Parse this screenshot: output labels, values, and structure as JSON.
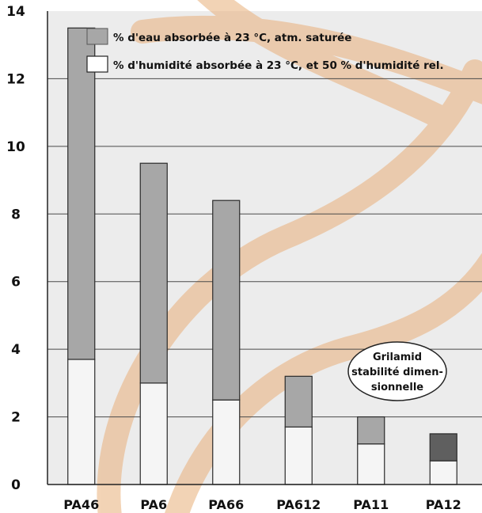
{
  "chart_data": {
    "type": "bar",
    "stacked": true,
    "categories": [
      "PA46",
      "PA6",
      "PA66",
      "PA612",
      "PA11",
      "PA12"
    ],
    "series": [
      {
        "name": "% d'humidité absorbée à 23 °C, et 50 % d'humidité rel.",
        "values": [
          3.7,
          3.0,
          2.5,
          1.7,
          1.2,
          0.7
        ],
        "color": "#f5f5f5"
      },
      {
        "name": "% d'eau absorbée à 23 °C, atm. saturée",
        "values": [
          9.8,
          6.5,
          5.9,
          1.5,
          0.8,
          0.8
        ],
        "color": "#a7a7a7",
        "highlight_color": "#5f5f5f",
        "highlight_category": "PA12"
      }
    ],
    "legend_order": [
      1,
      0
    ],
    "legend_position": "top-right",
    "ylim": [
      0,
      14
    ],
    "yticks": [
      0,
      2,
      4,
      6,
      8,
      10,
      12,
      14
    ],
    "grid": true,
    "xlabel": "",
    "ylabel": "",
    "annotation": {
      "lines": [
        "Grilamid",
        "stabilité dimen-",
        "sionnelle"
      ],
      "near_category": "PA12"
    }
  },
  "colors": {
    "plot_background": "#ececec",
    "grid_line": "#4a4a4a",
    "bar_outline": "#2a2a2a",
    "decorative_coil": "#e9b07a"
  }
}
